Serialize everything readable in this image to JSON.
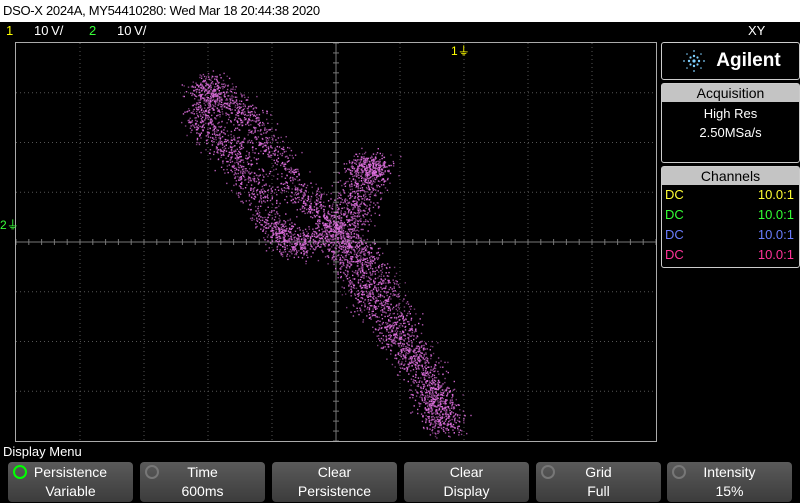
{
  "title_bar": "DSO-X 2024A, MY54410280: Wed Mar 18 20:44:38 2020",
  "status": {
    "ch1_num": "1",
    "ch1_scale": "10 V/",
    "ch2_num": "2",
    "ch2_scale": "10 V/",
    "mode": "XY"
  },
  "markers": {
    "top_trigger": "1",
    "left_ch2": "2"
  },
  "sidebar": {
    "brand": "Agilent",
    "acquisition": {
      "header": "Acquisition",
      "mode": "High Res",
      "rate": "2.50MSa/s"
    },
    "channels": {
      "header": "Channels",
      "rows": [
        {
          "coupling": "DC",
          "ratio": "10.0:1",
          "color": "#ffff33"
        },
        {
          "coupling": "DC",
          "ratio": "10.0:1",
          "color": "#33ff33"
        },
        {
          "coupling": "DC",
          "ratio": "10.0:1",
          "color": "#6a7cff"
        },
        {
          "coupling": "DC",
          "ratio": "10.0:1",
          "color": "#ff3399"
        }
      ]
    }
  },
  "menu_label": "Display Menu",
  "softkeys": [
    {
      "line1": "Persistence",
      "line2": "Variable"
    },
    {
      "line1": "Time",
      "line2": "600ms"
    },
    {
      "line1": "Clear",
      "line2": "Persistence"
    },
    {
      "line1": "Clear",
      "line2": "Display"
    },
    {
      "line1": "Grid",
      "line2": "Full"
    },
    {
      "line1": "Intensity",
      "line2": "15%"
    }
  ],
  "colors": {
    "trace": "#e070e0",
    "grid": "#555555",
    "ch1": "#ffff00",
    "ch2": "#38ff38"
  }
}
